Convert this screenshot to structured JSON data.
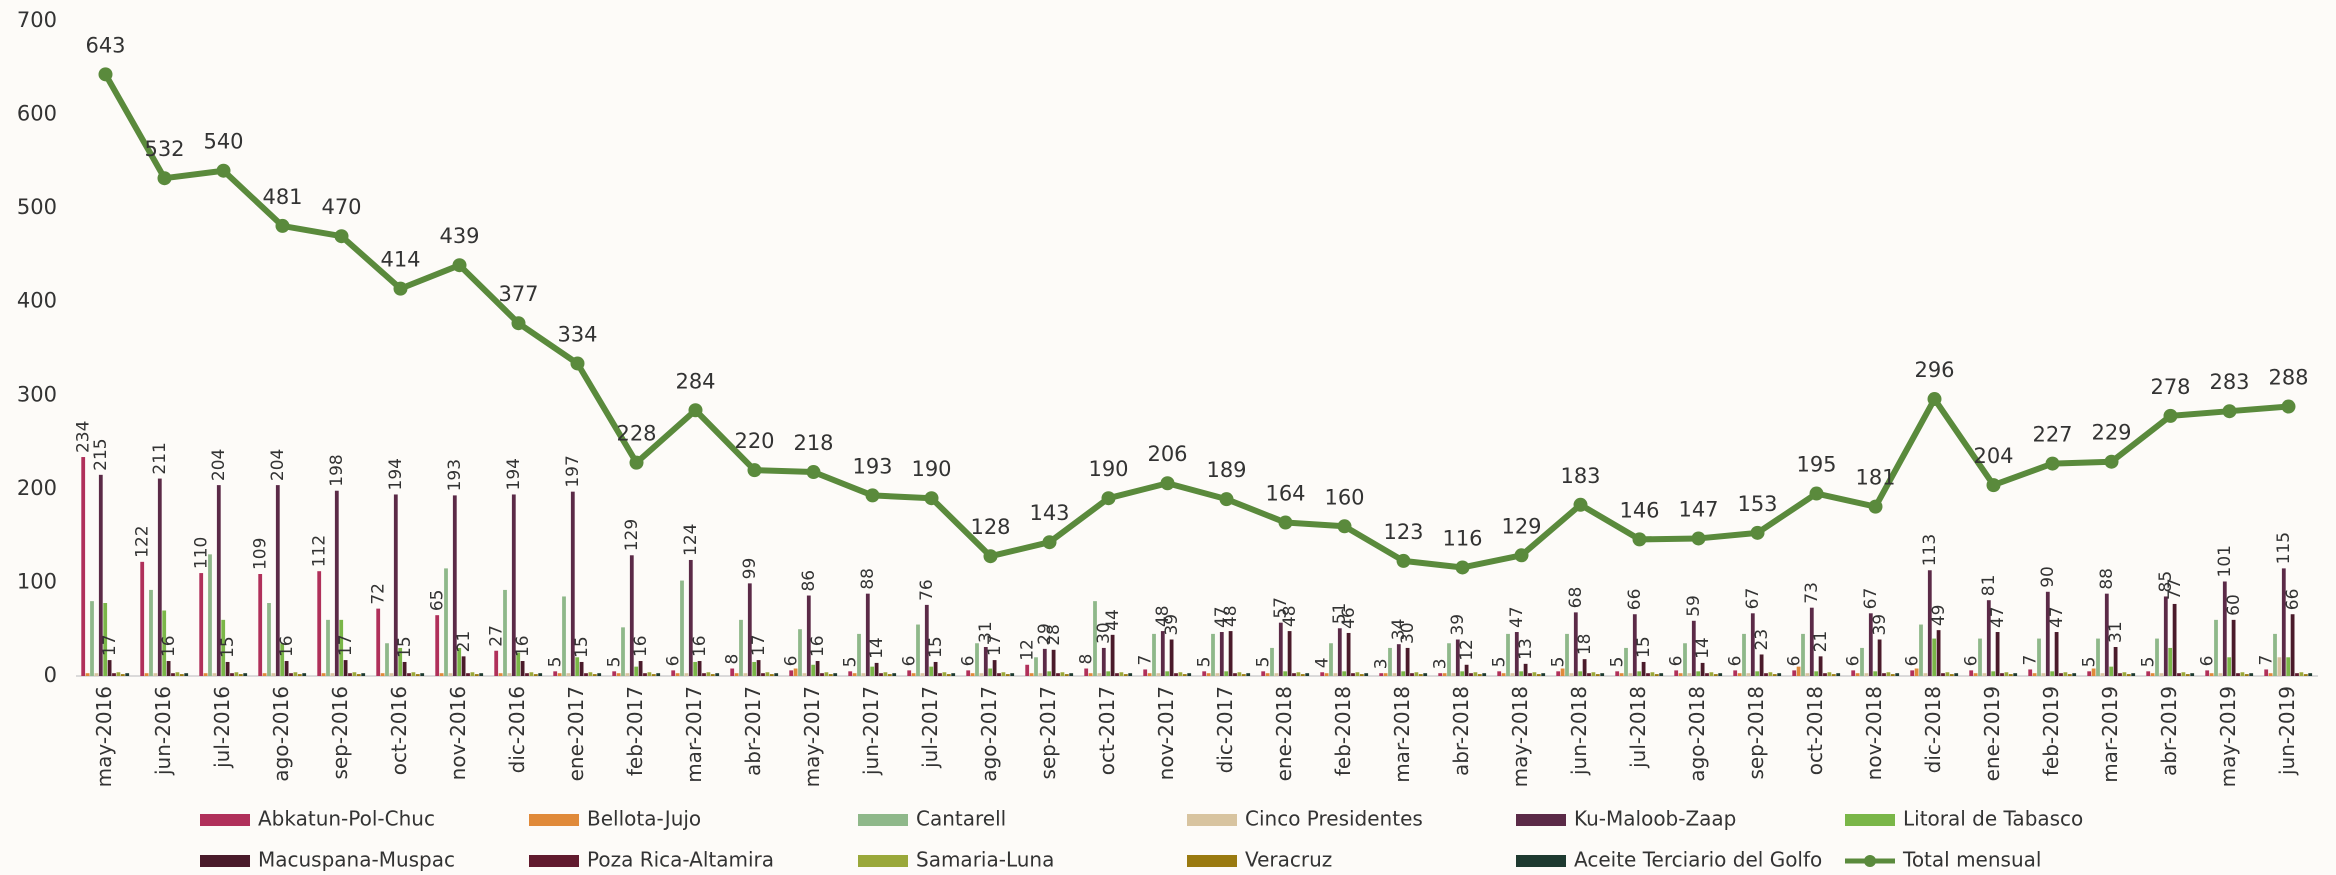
{
  "chart_data": {
    "type": "bar",
    "categories": [
      "may-2016",
      "jun-2016",
      "jul-2016",
      "ago-2016",
      "sep-2016",
      "oct-2016",
      "nov-2016",
      "dic-2016",
      "ene-2017",
      "feb-2017",
      "mar-2017",
      "abr-2017",
      "may-2017",
      "jun-2017",
      "jul-2017",
      "ago-2017",
      "sep-2017",
      "oct-2017",
      "nov-2017",
      "dic-2017",
      "ene-2018",
      "feb-2018",
      "mar-2018",
      "abr-2018",
      "may-2018",
      "jun-2018",
      "jul-2018",
      "ago-2018",
      "sep-2018",
      "oct-2018",
      "nov-2018",
      "dic-2018",
      "ene-2019",
      "feb-2019",
      "mar-2019",
      "abr-2019",
      "may-2019",
      "jun-2019"
    ],
    "ylim": [
      0,
      700
    ],
    "yticks": [
      0,
      100,
      200,
      300,
      400,
      500,
      600,
      700
    ],
    "series": [
      {
        "name": "Abkatun-Pol-Chuc",
        "type": "bar",
        "color": "#b0305a",
        "data_labels": true,
        "values": [
          234,
          122,
          110,
          109,
          112,
          72,
          65,
          27,
          5,
          5,
          6,
          8,
          6,
          5,
          6,
          6,
          12,
          8,
          7,
          5,
          5,
          4,
          3,
          3,
          5,
          5,
          5,
          6,
          6,
          6,
          6,
          6,
          6,
          7,
          5,
          5,
          6,
          7
        ]
      },
      {
        "name": "Bellota-Jujo",
        "type": "bar",
        "color": "#e08a3a",
        "data_labels": false,
        "values": [
          3,
          3,
          3,
          3,
          3,
          3,
          3,
          3,
          3,
          3,
          3,
          3,
          8,
          3,
          3,
          3,
          3,
          3,
          3,
          3,
          3,
          3,
          3,
          3,
          3,
          8,
          3,
          3,
          3,
          10,
          3,
          8,
          3,
          3,
          8,
          3,
          3,
          3
        ]
      },
      {
        "name": "Cantarell",
        "type": "bar",
        "color": "#8fb88a",
        "data_labels": false,
        "values": [
          80,
          92,
          130,
          78,
          60,
          35,
          115,
          92,
          85,
          52,
          102,
          60,
          50,
          45,
          55,
          35,
          20,
          80,
          45,
          45,
          30,
          35,
          30,
          35,
          45,
          45,
          30,
          35,
          45,
          45,
          30,
          55,
          40,
          40,
          40,
          40,
          60,
          45
        ]
      },
      {
        "name": "Cinco Presidentes",
        "type": "bar",
        "color": "#d8c4a0",
        "data_labels": false,
        "values": [
          3,
          3,
          3,
          3,
          3,
          3,
          3,
          3,
          3,
          3,
          3,
          3,
          3,
          3,
          3,
          3,
          3,
          3,
          3,
          3,
          3,
          3,
          3,
          3,
          3,
          3,
          3,
          3,
          3,
          3,
          3,
          3,
          3,
          3,
          3,
          3,
          3,
          20
        ]
      },
      {
        "name": "Ku-Maloob-Zaap",
        "type": "bar",
        "color": "#5b2a47",
        "data_labels": true,
        "values": [
          215,
          211,
          204,
          204,
          198,
          194,
          193,
          194,
          197,
          129,
          124,
          99,
          86,
          88,
          76,
          31,
          29,
          30,
          48,
          47,
          57,
          51,
          34,
          39,
          47,
          68,
          66,
          59,
          67,
          73,
          67,
          113,
          81,
          90,
          88,
          85,
          101,
          115
        ]
      },
      {
        "name": "Litoral de Tabasco",
        "type": "bar",
        "color": "#7ab648",
        "data_labels": false,
        "values": [
          78,
          70,
          60,
          35,
          60,
          30,
          30,
          25,
          20,
          10,
          15,
          15,
          12,
          10,
          10,
          8,
          5,
          5,
          5,
          5,
          5,
          5,
          5,
          5,
          5,
          5,
          5,
          5,
          5,
          5,
          5,
          40,
          5,
          5,
          10,
          30,
          20,
          20
        ]
      },
      {
        "name": "Macuspana-Muspac",
        "type": "bar",
        "color": "#4a1a2a",
        "data_labels": true,
        "values": [
          17,
          16,
          15,
          16,
          17,
          15,
          21,
          16,
          15,
          16,
          16,
          17,
          16,
          14,
          15,
          17,
          28,
          44,
          39,
          48,
          48,
          46,
          30,
          12,
          13,
          18,
          15,
          14,
          23,
          21,
          39,
          49,
          47,
          47,
          31,
          77,
          60,
          66
        ]
      },
      {
        "name": "Poza Rica-Altamira",
        "type": "bar",
        "color": "#611a2e",
        "data_labels": false,
        "values": [
          3,
          3,
          3,
          3,
          3,
          3,
          3,
          3,
          3,
          3,
          3,
          3,
          3,
          3,
          3,
          3,
          3,
          3,
          3,
          3,
          3,
          3,
          3,
          3,
          3,
          3,
          3,
          3,
          3,
          3,
          3,
          3,
          3,
          3,
          3,
          3,
          3,
          3
        ]
      },
      {
        "name": "Samaria-Luna",
        "type": "bar",
        "color": "#9aa83a",
        "data_labels": false,
        "values": [
          4,
          4,
          4,
          4,
          4,
          4,
          4,
          4,
          4,
          4,
          4,
          4,
          4,
          4,
          4,
          4,
          4,
          4,
          4,
          4,
          4,
          4,
          4,
          4,
          4,
          4,
          4,
          4,
          4,
          4,
          4,
          4,
          4,
          4,
          4,
          4,
          4,
          4
        ]
      },
      {
        "name": "Veracruz",
        "type": "bar",
        "color": "#9a7a10",
        "data_labels": false,
        "values": [
          2,
          2,
          2,
          2,
          2,
          2,
          2,
          2,
          2,
          2,
          2,
          2,
          2,
          2,
          2,
          2,
          2,
          2,
          2,
          2,
          2,
          2,
          2,
          2,
          2,
          2,
          2,
          2,
          2,
          2,
          2,
          2,
          2,
          2,
          2,
          2,
          2,
          2
        ]
      },
      {
        "name": "Aceite Terciario del Golfo",
        "type": "bar",
        "color": "#1e3a30",
        "data_labels": false,
        "values": [
          3,
          3,
          3,
          3,
          3,
          3,
          3,
          3,
          3,
          3,
          3,
          3,
          3,
          3,
          3,
          3,
          3,
          3,
          3,
          3,
          3,
          3,
          3,
          3,
          3,
          3,
          3,
          3,
          3,
          3,
          3,
          3,
          3,
          3,
          3,
          3,
          3,
          3
        ]
      },
      {
        "name": "Total mensual",
        "type": "line",
        "color": "#5a8a3c",
        "data_labels": true,
        "values": [
          643,
          532,
          540,
          481,
          470,
          414,
          439,
          377,
          334,
          228,
          284,
          220,
          218,
          193,
          190,
          128,
          143,
          190,
          206,
          189,
          164,
          160,
          123,
          116,
          129,
          183,
          146,
          147,
          153,
          195,
          181,
          296,
          204,
          227,
          229,
          278,
          283,
          288
        ]
      }
    ]
  }
}
